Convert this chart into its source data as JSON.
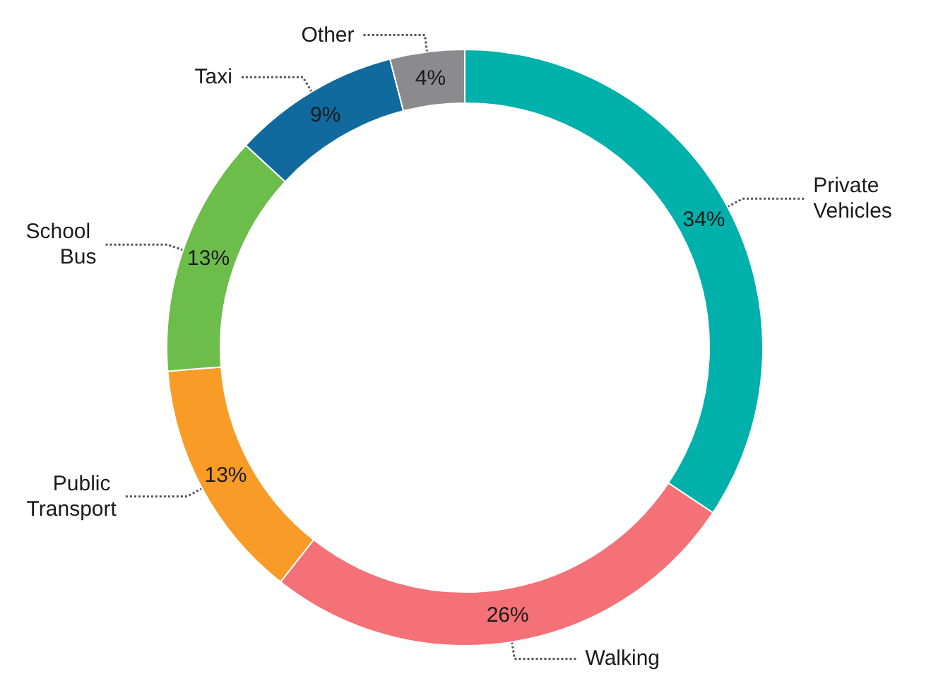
{
  "chart_data": {
    "type": "donut",
    "categories": [
      "Private Vehicles",
      "Walking",
      "Public Transport",
      "School Bus",
      "Taxi",
      "Other"
    ],
    "values": [
      34,
      26,
      13,
      13,
      9,
      4
    ],
    "colors": [
      "#00b0aa",
      "#f37177",
      "#f89c27",
      "#6dbd4b",
      "#106a9e",
      "#8b8b8d"
    ],
    "value_labels": [
      "34%",
      "26%",
      "13%",
      "13%",
      "9%",
      "4%"
    ],
    "legend": false
  }
}
